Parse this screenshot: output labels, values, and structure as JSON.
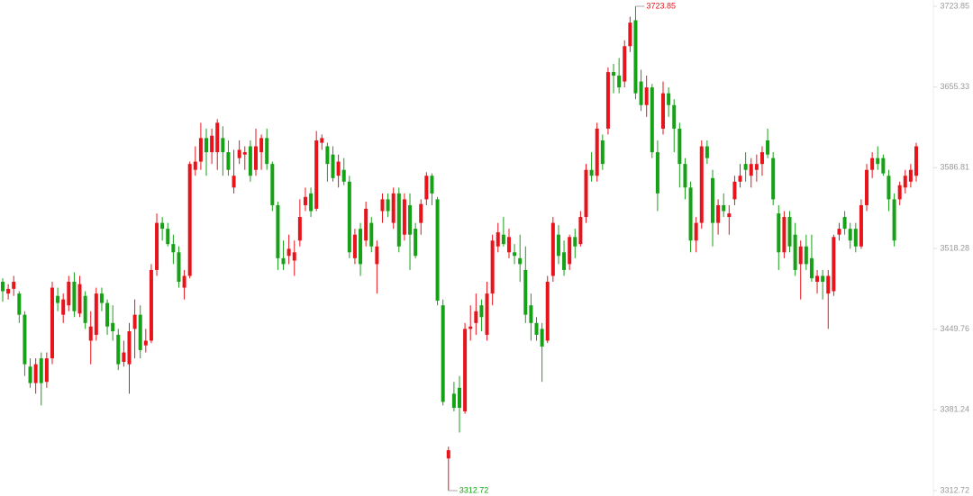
{
  "chart_data": {
    "type": "candlestick",
    "ylim": [
      3312.72,
      3723.85
    ],
    "yticks": [
      3312.72,
      3381.24,
      3449.76,
      3518.28,
      3586.81,
      3655.33,
      3723.85
    ],
    "up_color": "#e8141c",
    "down_color": "#16a116",
    "max_label": 3723.85,
    "min_label": 3312.72,
    "ohlc": [
      [
        3490,
        3493,
        3473,
        3482
      ],
      [
        3480,
        3488,
        3475,
        3484
      ],
      [
        3484,
        3495,
        3478,
        3490
      ],
      [
        3480,
        3482,
        3455,
        3462
      ],
      [
        3462,
        3465,
        3410,
        3420
      ],
      [
        3418,
        3425,
        3400,
        3404
      ],
      [
        3404,
        3425,
        3395,
        3420
      ],
      [
        3425,
        3430,
        3385,
        3404
      ],
      [
        3405,
        3430,
        3400,
        3425
      ],
      [
        3425,
        3490,
        3420,
        3485
      ],
      [
        3478,
        3485,
        3465,
        3472
      ],
      [
        3462,
        3480,
        3455,
        3475
      ],
      [
        3470,
        3495,
        3465,
        3490
      ],
      [
        3490,
        3498,
        3460,
        3465
      ],
      [
        3463,
        3495,
        3460,
        3488
      ],
      [
        3478,
        3482,
        3450,
        3455
      ],
      [
        3440,
        3465,
        3420,
        3452
      ],
      [
        3445,
        3485,
        3440,
        3480
      ],
      [
        3480,
        3485,
        3465,
        3472
      ],
      [
        3472,
        3475,
        3445,
        3452
      ],
      [
        3455,
        3470,
        3440,
        3448
      ],
      [
        3445,
        3450,
        3415,
        3420
      ],
      [
        3422,
        3440,
        3418,
        3430
      ],
      [
        3420,
        3455,
        3395,
        3448
      ],
      [
        3450,
        3475,
        3425,
        3462
      ],
      [
        3462,
        3470,
        3425,
        3432
      ],
      [
        3436,
        3450,
        3430,
        3440
      ],
      [
        3440,
        3505,
        3438,
        3500
      ],
      [
        3500,
        3548,
        3495,
        3540
      ],
      [
        3540,
        3545,
        3525,
        3535
      ],
      [
        3535,
        3540,
        3520,
        3522
      ],
      [
        3522,
        3530,
        3505,
        3515
      ],
      [
        3515,
        3520,
        3485,
        3490
      ],
      [
        3485,
        3500,
        3475,
        3495
      ],
      [
        3495,
        3592,
        3493,
        3590
      ],
      [
        3585,
        3605,
        3580,
        3592
      ],
      [
        3592,
        3625,
        3585,
        3612
      ],
      [
        3612,
        3620,
        3580,
        3600
      ],
      [
        3600,
        3620,
        3590,
        3614
      ],
      [
        3600,
        3628,
        3585,
        3625
      ],
      [
        3612,
        3622,
        3580,
        3600
      ],
      [
        3600,
        3610,
        3580,
        3585
      ],
      [
        3570,
        3602,
        3565,
        3580
      ],
      [
        3595,
        3610,
        3590,
        3602
      ],
      [
        3598,
        3605,
        3585,
        3600
      ],
      [
        3605,
        3610,
        3575,
        3580
      ],
      [
        3585,
        3620,
        3580,
        3605
      ],
      [
        3600,
        3615,
        3585,
        3612
      ],
      [
        3612,
        3620,
        3585,
        3590
      ],
      [
        3590,
        3592,
        3550,
        3555
      ],
      [
        3555,
        3558,
        3500,
        3510
      ],
      [
        3510,
        3525,
        3500,
        3505
      ],
      [
        3512,
        3530,
        3505,
        3518
      ],
      [
        3508,
        3525,
        3495,
        3515
      ],
      [
        3525,
        3560,
        3520,
        3545
      ],
      [
        3555,
        3570,
        3550,
        3562
      ],
      [
        3565,
        3570,
        3545,
        3550
      ],
      [
        3552,
        3618,
        3550,
        3610
      ],
      [
        3608,
        3615,
        3602,
        3612
      ],
      [
        3605,
        3608,
        3575,
        3590
      ],
      [
        3598,
        3605,
        3575,
        3578
      ],
      [
        3580,
        3598,
        3570,
        3592
      ],
      [
        3585,
        3595,
        3572,
        3575
      ],
      [
        3575,
        3580,
        3510,
        3515
      ],
      [
        3510,
        3535,
        3505,
        3530
      ],
      [
        3535,
        3540,
        3495,
        3505
      ],
      [
        3525,
        3558,
        3520,
        3552
      ],
      [
        3540,
        3545,
        3515,
        3520
      ],
      [
        3505,
        3525,
        3480,
        3520
      ],
      [
        3550,
        3565,
        3540,
        3560
      ],
      [
        3560,
        3565,
        3545,
        3550
      ],
      [
        3540,
        3570,
        3535,
        3565
      ],
      [
        3565,
        3570,
        3515,
        3520
      ],
      [
        3530,
        3565,
        3525,
        3560
      ],
      [
        3555,
        3565,
        3500,
        3530
      ],
      [
        3535,
        3540,
        3510,
        3512
      ],
      [
        3540,
        3560,
        3530,
        3556
      ],
      [
        3560,
        3583,
        3555,
        3580
      ],
      [
        3580,
        3582,
        3555,
        3565
      ],
      [
        3560,
        3562,
        3470,
        3474
      ],
      [
        3470,
        3475,
        3385,
        3388
      ],
      [
        3340,
        3350,
        3312.72,
        3347
      ],
      [
        3395,
        3405,
        3380,
        3383
      ],
      [
        3400,
        3410,
        3362,
        3383
      ],
      [
        3380,
        3455,
        3378,
        3450
      ],
      [
        3450,
        3470,
        3440,
        3452
      ],
      [
        3455,
        3480,
        3445,
        3465
      ],
      [
        3470,
        3475,
        3448,
        3460
      ],
      [
        3445,
        3490,
        3440,
        3480
      ],
      [
        3480,
        3530,
        3470,
        3525
      ],
      [
        3520,
        3540,
        3515,
        3532
      ],
      [
        3530,
        3545,
        3520,
        3522
      ],
      [
        3515,
        3535,
        3510,
        3528
      ],
      [
        3515,
        3522,
        3505,
        3512
      ],
      [
        3510,
        3530,
        3490,
        3505
      ],
      [
        3500,
        3520,
        3455,
        3462
      ],
      [
        3470,
        3480,
        3440,
        3455
      ],
      [
        3455,
        3460,
        3440,
        3445
      ],
      [
        3450,
        3455,
        3405,
        3435
      ],
      [
        3440,
        3495,
        3438,
        3490
      ],
      [
        3495,
        3545,
        3490,
        3540
      ],
      [
        3530,
        3538,
        3505,
        3512
      ],
      [
        3515,
        3525,
        3495,
        3500
      ],
      [
        3505,
        3530,
        3500,
        3528
      ],
      [
        3528,
        3535,
        3510,
        3520
      ],
      [
        3522,
        3550,
        3520,
        3545
      ],
      [
        3545,
        3590,
        3540,
        3585
      ],
      [
        3585,
        3600,
        3575,
        3580
      ],
      [
        3580,
        3625,
        3575,
        3620
      ],
      [
        3610,
        3615,
        3585,
        3590
      ],
      [
        3620,
        3672,
        3615,
        3668
      ],
      [
        3668,
        3675,
        3650,
        3665
      ],
      [
        3665,
        3680,
        3650,
        3655
      ],
      [
        3660,
        3695,
        3655,
        3690
      ],
      [
        3690,
        3715,
        3685,
        3710
      ],
      [
        3712,
        3723.85,
        3645,
        3650
      ],
      [
        3660,
        3670,
        3635,
        3640
      ],
      [
        3640,
        3665,
        3630,
        3655
      ],
      [
        3655,
        3658,
        3595,
        3600
      ],
      [
        3600,
        3610,
        3550,
        3565
      ],
      [
        3620,
        3660,
        3615,
        3650
      ],
      [
        3650,
        3655,
        3630,
        3640
      ],
      [
        3640,
        3645,
        3600,
        3620
      ],
      [
        3620,
        3625,
        3570,
        3590
      ],
      [
        3590,
        3595,
        3560,
        3570
      ],
      [
        3570,
        3575,
        3515,
        3525
      ],
      [
        3525,
        3545,
        3515,
        3540
      ],
      [
        3540,
        3610,
        3535,
        3605
      ],
      [
        3605,
        3610,
        3590,
        3595
      ],
      [
        3578,
        3585,
        3520,
        3540
      ],
      [
        3540,
        3560,
        3530,
        3555
      ],
      [
        3555,
        3565,
        3545,
        3550
      ],
      [
        3545,
        3555,
        3530,
        3548
      ],
      [
        3560,
        3580,
        3555,
        3575
      ],
      [
        3575,
        3590,
        3570,
        3580
      ],
      [
        3590,
        3600,
        3575,
        3585
      ],
      [
        3580,
        3595,
        3570,
        3590
      ],
      [
        3585,
        3598,
        3575,
        3590
      ],
      [
        3590,
        3605,
        3580,
        3600
      ],
      [
        3610,
        3620,
        3595,
        3598
      ],
      [
        3595,
        3600,
        3555,
        3560
      ],
      [
        3548,
        3555,
        3500,
        3515
      ],
      [
        3515,
        3550,
        3510,
        3545
      ],
      [
        3545,
        3550,
        3515,
        3520
      ],
      [
        3530,
        3540,
        3495,
        3500
      ],
      [
        3505,
        3525,
        3475,
        3520
      ],
      [
        3520,
        3530,
        3500,
        3505
      ],
      [
        3510,
        3530,
        3490,
        3493
      ],
      [
        3490,
        3500,
        3480,
        3495
      ],
      [
        3495,
        3500,
        3475,
        3490
      ],
      [
        3480,
        3500,
        3450,
        3495
      ],
      [
        3482,
        3530,
        3478,
        3528
      ],
      [
        3530,
        3540,
        3525,
        3535
      ],
      [
        3545,
        3550,
        3530,
        3535
      ],
      [
        3535,
        3540,
        3518,
        3525
      ],
      [
        3535,
        3540,
        3515,
        3520
      ],
      [
        3520,
        3560,
        3518,
        3555
      ],
      [
        3555,
        3590,
        3550,
        3585
      ],
      [
        3585,
        3600,
        3578,
        3595
      ],
      [
        3595,
        3605,
        3585,
        3590
      ],
      [
        3595,
        3598,
        3580,
        3582
      ],
      [
        3580,
        3585,
        3550,
        3560
      ],
      [
        3560,
        3565,
        3520,
        3525
      ],
      [
        3560,
        3575,
        3555,
        3572
      ],
      [
        3570,
        3585,
        3565,
        3580
      ],
      [
        3575,
        3590,
        3570,
        3585
      ],
      [
        3580,
        3608,
        3575,
        3605
      ]
    ]
  }
}
